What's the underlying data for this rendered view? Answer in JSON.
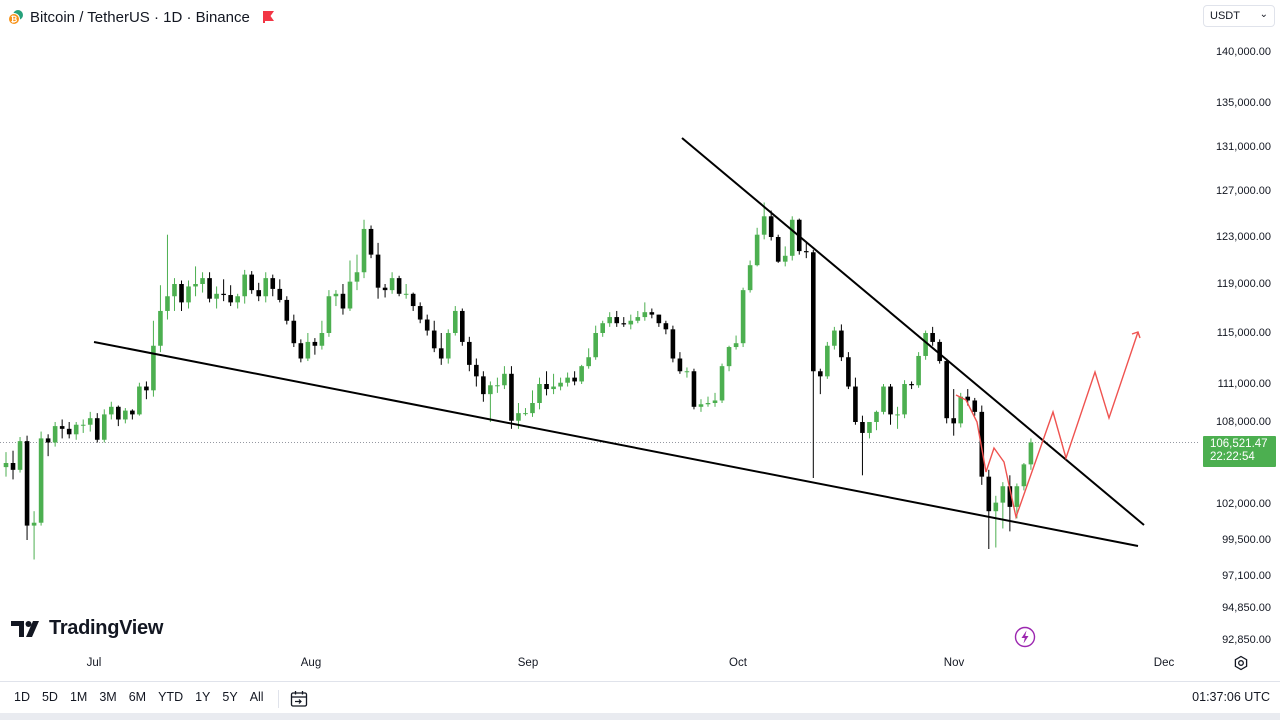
{
  "header": {
    "title": "Bitcoin / TetherUS · 1D · Binance",
    "currency": "USDT"
  },
  "price_axis": {
    "labels": [
      "140,000.00",
      "135,000.00",
      "131,000.00",
      "127,000.00",
      "123,000.00",
      "119,000.00",
      "115,000.00",
      "111,000.00",
      "108,000.00",
      "102,000.00",
      "99,500.00",
      "97,100.00",
      "94,850.00",
      "92,850.00"
    ]
  },
  "last_price": {
    "price": "106,521.47",
    "countdown": "22:22:54"
  },
  "time_axis": {
    "labels": [
      "Jul",
      "Aug",
      "Sep",
      "Oct",
      "Nov",
      "Dec"
    ]
  },
  "logo": {
    "text": "TradingView"
  },
  "bottom_bar": {
    "ranges": [
      "1D",
      "5D",
      "1M",
      "3M",
      "6M",
      "YTD",
      "1Y",
      "5Y",
      "All"
    ],
    "clock": "01:37:06 UTC"
  },
  "icons": {
    "symbol": "bitcoin-tether-icon",
    "flag": "flag-icon",
    "settings": "gear-icon",
    "calendar": "calendar-goto-icon",
    "flash": "lightning-icon"
  },
  "colors": {
    "up": "#4caf50",
    "down": "#000000",
    "projection": "#ef5350",
    "badge": "#4caf50"
  },
  "chart_data": {
    "type": "candlestick",
    "series": [
      {
        "name": "",
        "values": [
          105.0,
          104.5,
          106.6,
          100.5,
          100.7,
          106.8,
          106.5,
          107.7,
          107.5,
          107.1,
          107.8,
          107.8,
          108.3,
          106.7,
          108.6,
          109.2,
          108.2,
          108.9,
          108.6,
          110.8,
          110.5,
          114.0,
          116.8,
          118.0,
          119.0,
          117.5,
          118.8,
          119.0,
          119.5,
          117.8,
          118.2,
          118.1,
          117.5,
          118.0,
          119.8,
          118.5,
          118.0,
          119.5,
          118.6,
          117.7,
          116.0,
          114.2,
          113.0,
          114.3,
          114.0,
          115.0,
          118.0,
          118.2,
          117.0,
          119.2,
          120.0,
          123.7,
          121.5,
          118.7,
          118.5,
          119.5,
          118.2,
          118.2,
          117.2,
          116.1,
          115.2,
          113.8,
          113.0,
          115.0,
          116.8,
          114.3,
          112.5,
          111.6,
          110.2,
          110.9,
          110.9,
          111.8,
          108.1,
          108.7,
          108.7,
          109.5,
          111.0,
          110.6,
          110.8,
          111.1,
          111.5,
          111.2,
          112.4,
          113.1,
          115.0,
          115.8,
          116.3,
          115.8,
          115.7,
          116.0,
          116.3,
          116.7,
          116.5,
          115.8,
          115.3,
          113.0,
          112.0,
          112.0,
          109.2,
          109.4,
          109.5,
          109.7,
          112.4,
          113.9,
          114.2,
          118.5,
          120.6,
          123.2,
          124.8,
          123.0,
          120.9,
          121.4,
          124.5,
          121.8,
          121.7,
          112.0,
          111.6,
          114.0,
          115.2,
          113.1,
          110.8,
          108.0,
          107.2,
          108.0,
          108.8,
          110.8,
          108.6,
          108.6,
          111.0,
          110.9,
          113.2,
          115.0,
          114.3,
          112.8,
          108.3,
          107.9,
          110.0,
          109.7,
          108.8,
          104.0,
          101.5,
          102.1,
          103.3,
          101.8,
          103.3,
          104.9,
          106.5
        ]
      }
    ],
    "open": [
      104.7,
      105.0,
      104.5,
      106.6,
      100.5,
      100.7,
      106.8,
      106.5,
      107.7,
      107.5,
      107.1,
      107.8,
      107.8,
      108.3,
      106.7,
      108.6,
      109.2,
      108.2,
      108.9,
      108.6,
      110.8,
      110.5,
      114.0,
      116.8,
      118.0,
      119.0,
      117.5,
      118.8,
      119.0,
      119.5,
      117.8,
      118.2,
      118.1,
      117.5,
      118.0,
      119.8,
      118.5,
      118.0,
      119.5,
      118.6,
      117.7,
      116.0,
      114.2,
      113.0,
      114.3,
      114.0,
      115.0,
      118.0,
      118.2,
      117.0,
      119.2,
      120.0,
      123.7,
      121.5,
      118.7,
      118.5,
      119.5,
      118.2,
      118.2,
      117.2,
      116.1,
      115.2,
      113.8,
      113.0,
      115.0,
      116.8,
      114.3,
      112.5,
      111.6,
      110.2,
      110.9,
      110.9,
      111.8,
      108.1,
      108.7,
      108.7,
      109.5,
      111.0,
      110.6,
      110.8,
      111.1,
      111.5,
      111.2,
      112.4,
      113.1,
      115.0,
      115.8,
      116.3,
      115.8,
      115.7,
      116.0,
      116.3,
      116.7,
      116.5,
      115.8,
      115.3,
      113.0,
      112.0,
      112.0,
      109.2,
      109.4,
      109.5,
      109.7,
      112.4,
      113.9,
      114.2,
      118.5,
      120.6,
      123.2,
      124.8,
      123.0,
      120.9,
      121.4,
      124.5,
      121.8,
      121.7,
      112.0,
      111.6,
      114.0,
      115.2,
      113.1,
      110.8,
      108.0,
      107.2,
      108.0,
      108.8,
      110.8,
      108.6,
      108.6,
      111.0,
      110.9,
      113.2,
      115.0,
      114.3,
      112.8,
      108.3,
      107.9,
      110.0,
      109.7,
      108.8,
      104.0,
      101.5,
      102.1,
      103.3,
      101.8,
      103.3,
      104.9
    ],
    "high": [
      105.8,
      105.9,
      106.9,
      107.0,
      101.5,
      107.3,
      107.1,
      108.0,
      108.2,
      108.0,
      108.0,
      108.2,
      108.8,
      108.7,
      109.0,
      109.6,
      109.3,
      109.1,
      109.0,
      111.1,
      111.2,
      116.0,
      118.9,
      123.2,
      119.5,
      119.3,
      119.3,
      120.5,
      120.0,
      120.0,
      118.8,
      119.4,
      118.9,
      118.2,
      120.2,
      120.1,
      119.1,
      120.0,
      119.8,
      119.4,
      118.0,
      116.5,
      114.5,
      115.0,
      114.6,
      116.0,
      118.5,
      118.5,
      119.0,
      121.0,
      121.5,
      124.5,
      124.0,
      122.5,
      119.0,
      120.0,
      119.7,
      119.0,
      118.3,
      117.5,
      116.5,
      116.0,
      115.0,
      115.3,
      117.2,
      117.0,
      114.7,
      113.0,
      112.0,
      111.2,
      111.5,
      112.4,
      112.4,
      109.5,
      109.1,
      110.5,
      111.5,
      112.0,
      111.8,
      111.5,
      111.9,
      112.0,
      112.5,
      113.8,
      115.6,
      116.0,
      116.7,
      116.8,
      116.3,
      116.5,
      116.8,
      117.5,
      117.0,
      116.5,
      116.0,
      115.6,
      113.5,
      112.3,
      112.2,
      109.8,
      110.0,
      110.3,
      112.6,
      114.0,
      114.8,
      118.7,
      121.0,
      123.8,
      126.0,
      125.3,
      123.2,
      122.2,
      124.8,
      124.6,
      122.5,
      121.9,
      112.2,
      114.3,
      115.5,
      115.7,
      113.5,
      111.5,
      108.5,
      108.0,
      108.9,
      111.0,
      111.0,
      109.2,
      111.3,
      111.2,
      113.5,
      115.2,
      115.5,
      114.5,
      113.0,
      110.6,
      110.3,
      110.6,
      109.9,
      109.3,
      104.5,
      102.6,
      103.6,
      104.1,
      103.5,
      105.0,
      106.8
    ],
    "low": [
      104.0,
      103.8,
      104.3,
      99.5,
      98.2,
      100.5,
      105.5,
      106.2,
      106.8,
      106.8,
      106.7,
      107.2,
      107.3,
      106.5,
      106.5,
      108.2,
      107.7,
      107.9,
      108.2,
      108.5,
      109.8,
      110.0,
      113.5,
      116.1,
      116.8,
      116.8,
      117.0,
      118.0,
      118.3,
      117.5,
      117.0,
      117.6,
      117.2,
      117.0,
      117.4,
      118.2,
      117.6,
      117.5,
      118.0,
      117.5,
      115.7,
      113.9,
      112.7,
      112.8,
      113.3,
      113.7,
      114.7,
      117.2,
      116.5,
      116.8,
      118.5,
      119.5,
      121.2,
      117.8,
      117.9,
      118.2,
      118.0,
      117.8,
      116.8,
      115.8,
      114.8,
      113.5,
      112.5,
      112.6,
      114.8,
      114.0,
      112.0,
      110.8,
      109.6,
      108.0,
      110.3,
      110.6,
      107.5,
      107.5,
      108.5,
      108.4,
      109.0,
      110.1,
      110.2,
      110.5,
      110.8,
      110.9,
      111.0,
      112.2,
      112.9,
      114.7,
      115.5,
      115.5,
      115.5,
      115.3,
      115.8,
      116.0,
      116.2,
      115.5,
      114.9,
      112.7,
      111.8,
      111.5,
      109.0,
      108.8,
      109.2,
      109.2,
      109.5,
      112.0,
      113.7,
      113.9,
      118.3,
      120.5,
      122.8,
      122.7,
      120.8,
      120.5,
      121.0,
      121.5,
      121.2,
      103.9,
      110.2,
      111.4,
      113.7,
      112.8,
      110.6,
      107.8,
      104.1,
      106.8,
      107.4,
      108.6,
      107.8,
      107.5,
      108.3,
      110.6,
      110.7,
      112.9,
      114.0,
      112.6,
      107.9,
      107.0,
      107.6,
      109.3,
      108.5,
      103.4,
      98.9,
      99.0,
      100.3,
      100.1,
      101.0,
      103.0,
      104.5
    ],
    "projection_path": [
      [
        956,
        395
      ],
      [
        966,
        400
      ],
      [
        977,
        422
      ],
      [
        986,
        472
      ],
      [
        994,
        448
      ],
      [
        1004,
        462
      ],
      [
        1016,
        517
      ],
      [
        1053,
        412
      ],
      [
        1066,
        458
      ],
      [
        1095,
        372
      ],
      [
        1109,
        418
      ],
      [
        1138,
        332
      ]
    ],
    "trendlines": {
      "upper": [
        [
          682,
          138
        ],
        [
          1144,
          525
        ]
      ],
      "lower": [
        [
          94,
          342
        ],
        [
          1138,
          546
        ]
      ]
    },
    "last_value": 106.5
  }
}
